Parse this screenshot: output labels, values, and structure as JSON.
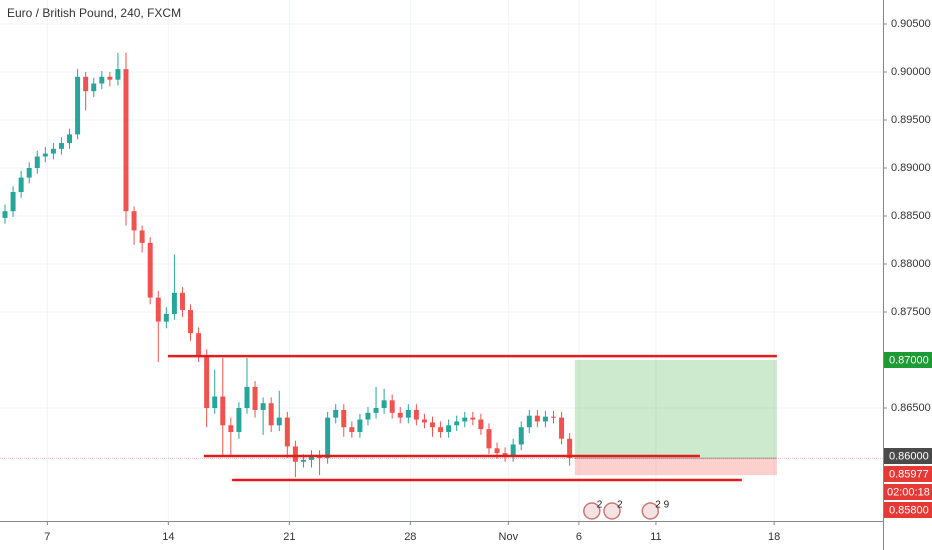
{
  "chart_data": {
    "type": "candlestick",
    "title": "Euro / British Pound, 240, FXCM",
    "x": [
      0,
      2,
      4,
      6,
      8,
      10,
      12,
      14,
      16,
      18,
      20,
      22,
      24,
      26,
      28,
      30,
      32,
      34,
      36,
      38,
      40,
      42,
      44,
      46,
      48,
      50,
      52,
      54,
      56,
      58,
      60,
      62,
      64,
      66,
      68,
      70,
      72,
      74,
      76,
      78,
      80,
      82,
      84,
      86,
      88,
      90,
      92,
      94,
      96,
      98,
      100,
      102,
      104,
      106,
      108,
      110,
      112,
      114,
      116,
      118,
      120,
      122,
      124,
      126,
      128,
      130,
      132,
      134,
      136,
      138,
      140
    ],
    "open": [
      0.8848,
      0.8855,
      0.8875,
      0.889,
      0.89,
      0.8912,
      0.8915,
      0.892,
      0.8926,
      0.8935,
      0.8995,
      0.898,
      0.8988,
      0.8995,
      0.8992,
      0.9003,
      0.8855,
      0.8835,
      0.8822,
      0.8765,
      0.874,
      0.8748,
      0.877,
      0.8752,
      0.8728,
      0.8705,
      0.865,
      0.8662,
      0.8632,
      0.8625,
      0.865,
      0.8672,
      0.8648,
      0.8655,
      0.8632,
      0.864,
      0.861,
      0.8594,
      0.8596,
      0.86,
      0.8598,
      0.864,
      0.8648,
      0.863,
      0.8625,
      0.8638,
      0.8645,
      0.865,
      0.8658,
      0.8645,
      0.864,
      0.8648,
      0.8638,
      0.8635,
      0.863,
      0.8625,
      0.8632,
      0.8636,
      0.864,
      0.8638,
      0.8628,
      0.8608,
      0.8603,
      0.86,
      0.8612,
      0.863,
      0.8642,
      0.8636,
      0.8641,
      0.864,
      0.8618
    ],
    "high": [
      0.8862,
      0.8881,
      0.8897,
      0.8906,
      0.8918,
      0.8922,
      0.8926,
      0.8932,
      0.8941,
      0.9003,
      0.9,
      0.8994,
      0.9001,
      0.9,
      0.902,
      0.902,
      0.886,
      0.884,
      0.8828,
      0.8772,
      0.8755,
      0.881,
      0.8776,
      0.8758,
      0.8734,
      0.8711,
      0.869,
      0.8702,
      0.864,
      0.8656,
      0.8702,
      0.8678,
      0.8661,
      0.8661,
      0.8668,
      0.8646,
      0.8616,
      0.8602,
      0.8606,
      0.8606,
      0.8646,
      0.8654,
      0.8654,
      0.8636,
      0.8644,
      0.8651,
      0.8672,
      0.867,
      0.8664,
      0.8651,
      0.8654,
      0.8654,
      0.8644,
      0.8641,
      0.8636,
      0.8638,
      0.8642,
      0.8646,
      0.8646,
      0.8644,
      0.8634,
      0.8614,
      0.8609,
      0.8618,
      0.8636,
      0.8648,
      0.8648,
      0.8647,
      0.8647,
      0.8646,
      0.8624
    ],
    "low": [
      0.8842,
      0.8849,
      0.8869,
      0.8884,
      0.8894,
      0.8906,
      0.8909,
      0.8914,
      0.892,
      0.893,
      0.896,
      0.8974,
      0.8982,
      0.8985,
      0.8986,
      0.884,
      0.882,
      0.8812,
      0.8758,
      0.8698,
      0.8733,
      0.8742,
      0.8745,
      0.872,
      0.8698,
      0.863,
      0.8644,
      0.86,
      0.86,
      0.8618,
      0.8644,
      0.864,
      0.8622,
      0.8625,
      0.8626,
      0.8598,
      0.8578,
      0.8588,
      0.8588,
      0.858,
      0.8592,
      0.8634,
      0.862,
      0.8619,
      0.8619,
      0.8632,
      0.8639,
      0.8644,
      0.8639,
      0.8634,
      0.8634,
      0.8632,
      0.8629,
      0.862,
      0.8619,
      0.8619,
      0.8626,
      0.863,
      0.8632,
      0.8622,
      0.8602,
      0.8597,
      0.8594,
      0.8594,
      0.8606,
      0.8624,
      0.863,
      0.863,
      0.8634,
      0.8612,
      0.859
    ],
    "close": [
      0.8855,
      0.8875,
      0.889,
      0.89,
      0.8912,
      0.8915,
      0.892,
      0.8926,
      0.8935,
      0.8995,
      0.898,
      0.8988,
      0.8995,
      0.8992,
      0.9003,
      0.8855,
      0.8835,
      0.8822,
      0.8765,
      0.874,
      0.8748,
      0.877,
      0.8752,
      0.8728,
      0.8705,
      0.865,
      0.8662,
      0.8632,
      0.8625,
      0.865,
      0.8672,
      0.8648,
      0.8655,
      0.8632,
      0.864,
      0.861,
      0.8594,
      0.8596,
      0.86,
      0.8598,
      0.864,
      0.8648,
      0.863,
      0.8625,
      0.8638,
      0.8645,
      0.865,
      0.8658,
      0.8645,
      0.864,
      0.8648,
      0.8638,
      0.8635,
      0.863,
      0.8625,
      0.8632,
      0.8636,
      0.864,
      0.8638,
      0.8628,
      0.8608,
      0.8603,
      0.86,
      0.8612,
      0.863,
      0.8642,
      0.8636,
      0.8641,
      0.864,
      0.8618,
      0.8598
    ],
    "up_color": "#26a69a",
    "down_color": "#ef5350",
    "xlim": [
      -1.24,
      217.7
    ],
    "ylim": [
      0.85323,
      0.9075
    ],
    "xticks": [
      {
        "value": 10.5,
        "label": "7"
      },
      {
        "value": 40.5,
        "label": "14"
      },
      {
        "value": 70.5,
        "label": "21"
      },
      {
        "value": 100.5,
        "label": "28"
      },
      {
        "value": 124.8,
        "label": "Nov"
      },
      {
        "value": 142.3,
        "label": "6"
      },
      {
        "value": 161.4,
        "label": "11"
      },
      {
        "value": 190.7,
        "label": "18"
      }
    ],
    "yticks": [
      {
        "value": 0.905,
        "label": "0.90500"
      },
      {
        "value": 0.9,
        "label": "0.90000"
      },
      {
        "value": 0.895,
        "label": "0.89500"
      },
      {
        "value": 0.89,
        "label": "0.89000"
      },
      {
        "value": 0.885,
        "label": "0.88500"
      },
      {
        "value": 0.88,
        "label": "0.88000"
      },
      {
        "value": 0.875,
        "label": "0.87500"
      },
      {
        "value": 0.865,
        "label": "0.86500"
      }
    ],
    "grid": true,
    "levels": [
      {
        "y": 0.8704,
        "x": [
          40.4,
          191.4
        ],
        "color": "#e31b1b"
      },
      {
        "y": 0.86,
        "x": [
          49.3,
          172.3
        ],
        "color": "#e31b1b"
      },
      {
        "y": 0.8575,
        "x": [
          56.3,
          182.7
        ],
        "color": "#e31b1b"
      }
    ],
    "position": {
      "x": [
        141.3,
        191.4
      ],
      "entry": 0.85977,
      "target": 0.87,
      "stop": 0.858
    },
    "price_tags": [
      {
        "value": 0.87,
        "label": "0.87000",
        "color": "#1e9b34"
      },
      {
        "value": 0.86,
        "label": "0.86000",
        "color": "#4a4a4a"
      },
      {
        "value": 0.85977,
        "label": "0.85977",
        "color": "#e53935"
      },
      {
        "value": 0.858,
        "label": "0.85800",
        "color": "#e53935"
      }
    ],
    "countdown": "02:00:18",
    "events": [
      {
        "x": 145.5,
        "label": "2"
      },
      {
        "x": 150.5,
        "label": "2"
      },
      {
        "x": 160.0,
        "label": "2 9"
      }
    ]
  }
}
